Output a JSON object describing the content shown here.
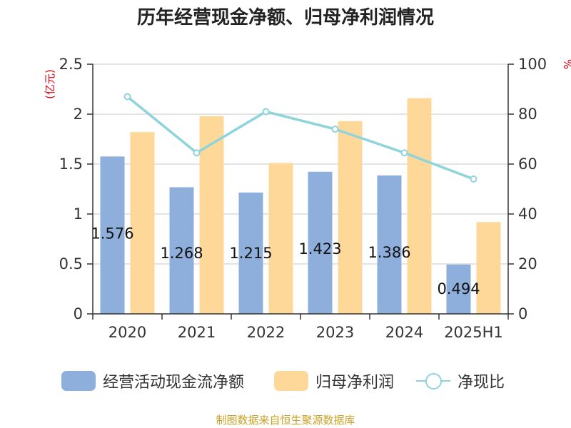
{
  "chart_data": {
    "type": "bar",
    "title": "历年经营现金净额、归母净利润情况",
    "categories": [
      "2020",
      "2021",
      "2022",
      "2023",
      "2024",
      "2025H1"
    ],
    "series": [
      {
        "name": "经营活动现金流净额",
        "kind": "bar",
        "axis": "left",
        "color": "#8eaedb",
        "values": [
          1.576,
          1.268,
          1.215,
          1.423,
          1.386,
          0.494
        ],
        "labels": [
          "1.576",
          "1.268",
          "1.215",
          "1.423",
          "1.386",
          "0.494"
        ]
      },
      {
        "name": "归母净利润",
        "kind": "bar",
        "axis": "left",
        "color": "#fed898",
        "values": [
          1.82,
          1.98,
          1.51,
          1.93,
          2.16,
          0.92
        ]
      },
      {
        "name": "净现比",
        "kind": "line",
        "axis": "right",
        "color": "#8fd3dc",
        "values": [
          87,
          64.5,
          81,
          74,
          64.5,
          54
        ]
      }
    ],
    "y_left": {
      "unit": "(亿元)",
      "ylim": [
        0,
        2.5
      ],
      "ticks": [
        "0",
        "0.5",
        "1",
        "1.5",
        "2",
        "2.5"
      ]
    },
    "y_right": {
      "unit": "%",
      "ylim": [
        0,
        100
      ],
      "ticks": [
        "0",
        "20",
        "40",
        "60",
        "80",
        "100"
      ]
    },
    "grid": true,
    "legend_position": "bottom"
  },
  "source": "制图数据来自恒生聚源数据库"
}
